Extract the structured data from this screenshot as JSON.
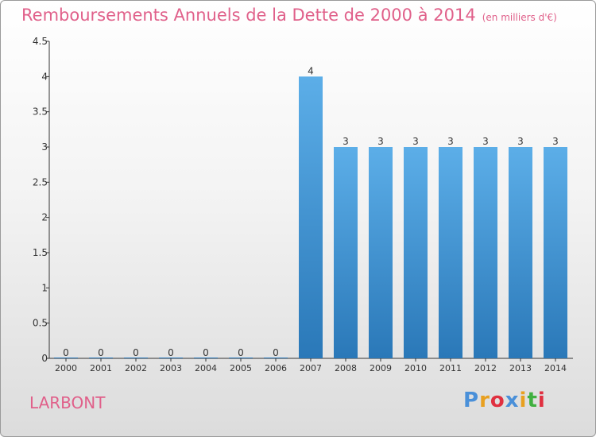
{
  "header": {
    "title": "Remboursements Annuels de la Dette de 2000 à 2014",
    "unit": "(en milliers d'€)"
  },
  "commune": "LARBONT",
  "logo": {
    "text": "Proxiti",
    "letter_colors": [
      "#4a90d9",
      "#e8a020",
      "#e03040",
      "#4a90d9",
      "#e8a020",
      "#40b040",
      "#e03040"
    ]
  },
  "colors": {
    "accent": "#e0608a",
    "bar_top": "#5caee8",
    "bar_bottom": "#2a78b8"
  },
  "chart_data": {
    "type": "bar",
    "categories": [
      "2000",
      "2001",
      "2002",
      "2003",
      "2004",
      "2005",
      "2006",
      "2007",
      "2008",
      "2009",
      "2010",
      "2011",
      "2012",
      "2013",
      "2014"
    ],
    "values": [
      0,
      0,
      0,
      0,
      0,
      0,
      0,
      4,
      3,
      3,
      3,
      3,
      3,
      3,
      3
    ],
    "data_labels": [
      "0",
      "0",
      "0",
      "0",
      "0",
      "0",
      "0",
      "4",
      "3",
      "3",
      "3",
      "3",
      "3",
      "3",
      "3"
    ],
    "yticks": [
      0,
      0.5,
      1,
      1.5,
      2,
      2.5,
      3,
      3.5,
      4,
      4.5
    ],
    "ytick_labels": [
      "0",
      "0.5",
      "1",
      "1.5",
      "2",
      "2.5",
      "3",
      "3.5",
      "4",
      "4.5"
    ],
    "ylim": [
      0,
      4.5
    ],
    "xlabel": "",
    "ylabel": "",
    "grid": false
  }
}
